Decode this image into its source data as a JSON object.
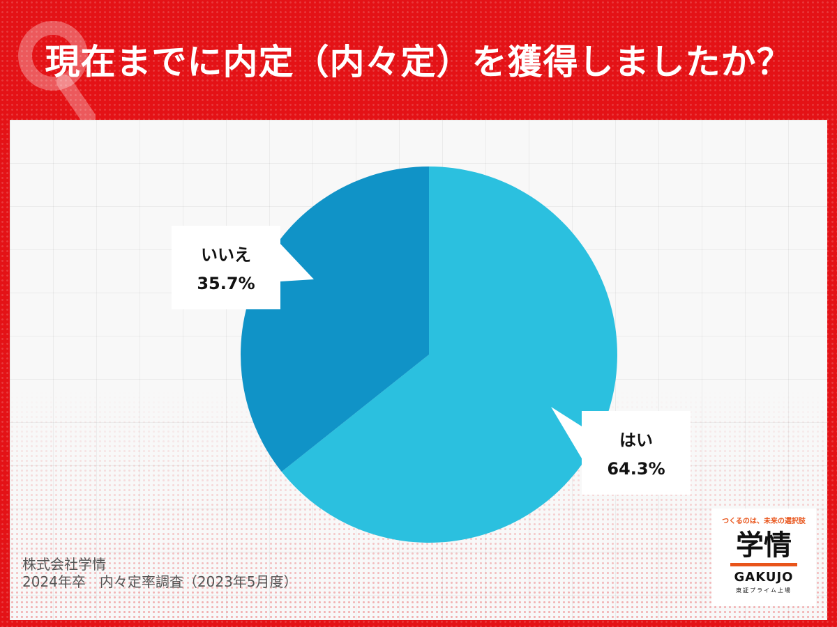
{
  "header": {
    "title": "現在までに内定（内々定）を獲得しましたか？",
    "mark_letter": "Q"
  },
  "chart_data": {
    "type": "pie",
    "start_angle_deg": 0,
    "direction": "clockwise",
    "slices": [
      {
        "label": "はい",
        "value": 64.3,
        "display": "64.3%",
        "color": "#2bc0df"
      },
      {
        "label": "いいえ",
        "value": 35.7,
        "display": "35.7%",
        "color": "#1093c7"
      }
    ]
  },
  "source": {
    "line1": "株式会社学情",
    "line2": "2024年卒　内々定率調査（2023年5月度）"
  },
  "logo": {
    "tagline": "つくるのは、未来の選択肢",
    "kanji": "学情",
    "roman": "GAKUJO",
    "listing": "東証プライム上場",
    "accent_color": "#e8541a"
  },
  "colors": {
    "background": "#e41216",
    "panel": "#f8f8f8"
  }
}
